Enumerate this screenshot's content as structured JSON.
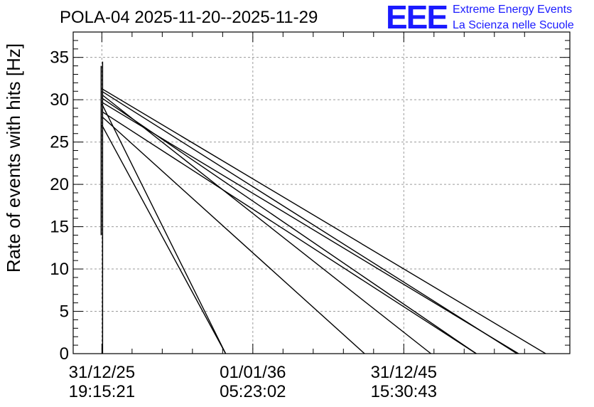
{
  "title": "POLA-04 2025-11-20--2025-11-29",
  "logo": {
    "mark": "EEE",
    "line1": "Extreme Energy Events",
    "line2": "La Scienza nelle Scuole",
    "color": "#1a1aff"
  },
  "chart_data": {
    "type": "line",
    "title": "POLA-04 2025-11-20--2025-11-29",
    "xlabel": "",
    "ylabel": "Rate of events with hits [Hz]",
    "ylim": [
      0,
      38
    ],
    "yticks": [
      0,
      5,
      10,
      15,
      20,
      25,
      30,
      35
    ],
    "xlim": [
      -0.095,
      1.55
    ],
    "xticks": [
      {
        "pos": 0,
        "line1": "31/12/25",
        "line2": "19:15:21"
      },
      {
        "pos": 0.5,
        "line1": "01/01/36",
        "line2": "05:23:02"
      },
      {
        "pos": 1,
        "line1": "31/12/45",
        "line2": "15:30:43"
      }
    ],
    "grid": true,
    "line_color": "#000000",
    "vertical_spike": {
      "x": 0.0,
      "ymin": 14,
      "ymax": 34.5
    },
    "series": [
      {
        "values": [
          [
            0.0,
            31.3
          ],
          [
            1.47,
            0
          ]
        ]
      },
      {
        "values": [
          [
            0.0,
            31.0
          ],
          [
            1.375,
            0
          ]
        ]
      },
      {
        "values": [
          [
            0.0,
            30.6
          ],
          [
            1.09,
            0
          ]
        ]
      },
      {
        "values": [
          [
            0.0,
            30.2
          ],
          [
            1.24,
            0
          ]
        ]
      },
      {
        "values": [
          [
            0.0,
            29.7
          ],
          [
            1.38,
            0
          ]
        ]
      },
      {
        "values": [
          [
            0.0,
            29.5
          ],
          [
            0.41,
            0
          ]
        ]
      },
      {
        "values": [
          [
            0.0,
            28.6
          ],
          [
            1.24,
            0
          ]
        ]
      },
      {
        "values": [
          [
            0.0,
            28.0
          ],
          [
            0.87,
            0
          ]
        ]
      },
      {
        "values": [
          [
            0.0,
            27.0
          ],
          [
            0.41,
            0
          ]
        ]
      }
    ]
  }
}
